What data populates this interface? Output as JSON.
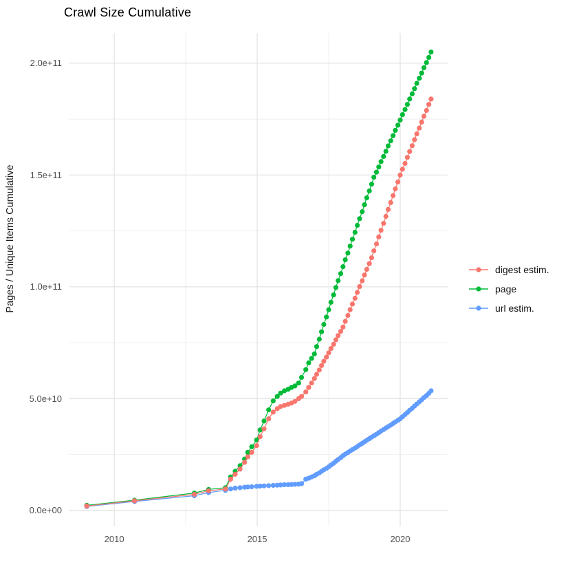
{
  "chart_data": {
    "type": "line",
    "marker": "point",
    "title": "Crawl Size Cumulative",
    "xlabel": "",
    "ylabel": "Pages / Unique Items Cumulative",
    "grid": true,
    "background": "#ffffff",
    "gridline_major_color": "#e4e4e4",
    "gridline_minor_color": "#ededed",
    "axis_text_color": "#4d4d4d",
    "x_range": [
      2008.41,
      2021.66
    ],
    "y_unit": "1e9",
    "y_range_e9": [
      -7.1,
      213.5
    ],
    "x_ticks": [
      {
        "value": 2010,
        "label": "2010"
      },
      {
        "value": 2015,
        "label": "2015"
      },
      {
        "value": 2020,
        "label": "2020"
      }
    ],
    "x_minor_ticks": [
      2012.5,
      2017.5
    ],
    "y_ticks": [
      {
        "value_e9": 0,
        "label": "0.0e+00"
      },
      {
        "value_e9": 50,
        "label": "5.0e+10"
      },
      {
        "value_e9": 100,
        "label": "1.0e+11"
      },
      {
        "value_e9": 150,
        "label": "1.5e+11"
      },
      {
        "value_e9": 200,
        "label": "2.0e+11"
      }
    ],
    "y_minor_ticks_e9": [
      25,
      75,
      125,
      175
    ],
    "legend": {
      "position": "right",
      "entries": [
        {
          "label": "digest estim.",
          "color": "#F8766D"
        },
        {
          "label": "page",
          "color": "#00BA38"
        },
        {
          "label": "url estim.",
          "color": "#619CFF"
        }
      ]
    },
    "series": [
      {
        "name": "url estim.",
        "color": "#619CFF",
        "points_year_value_e9": [
          [
            2009.04,
            1.8
          ],
          [
            2010.71,
            4.0
          ],
          [
            2012.8,
            6.6
          ],
          [
            2013.3,
            8.0
          ],
          [
            2013.89,
            9.0
          ],
          [
            2014.07,
            9.6
          ],
          [
            2014.23,
            10.0
          ],
          [
            2014.4,
            10.2
          ],
          [
            2014.56,
            10.4
          ],
          [
            2014.67,
            10.5
          ],
          [
            2014.81,
            10.6
          ],
          [
            2014.98,
            10.8
          ],
          [
            2015.1,
            10.9
          ],
          [
            2015.24,
            11.0
          ],
          [
            2015.4,
            11.1
          ],
          [
            2015.56,
            11.2
          ],
          [
            2015.7,
            11.3
          ],
          [
            2015.82,
            11.4
          ],
          [
            2015.95,
            11.5
          ],
          [
            2016.08,
            11.5
          ],
          [
            2016.2,
            11.6
          ],
          [
            2016.32,
            11.7
          ],
          [
            2016.45,
            11.8
          ],
          [
            2016.55,
            12.0
          ],
          [
            2016.7,
            14.0
          ],
          [
            2016.8,
            14.4
          ],
          [
            2016.9,
            15.0
          ],
          [
            2017.0,
            15.5
          ],
          [
            2017.08,
            16.2
          ],
          [
            2017.17,
            16.8
          ],
          [
            2017.25,
            17.5
          ],
          [
            2017.33,
            18.2
          ],
          [
            2017.42,
            18.8
          ],
          [
            2017.5,
            19.5
          ],
          [
            2017.58,
            20.3
          ],
          [
            2017.67,
            21.1
          ],
          [
            2017.75,
            22.0
          ],
          [
            2017.83,
            22.8
          ],
          [
            2017.92,
            23.6
          ],
          [
            2018.0,
            24.5
          ],
          [
            2018.08,
            25.2
          ],
          [
            2018.17,
            25.9
          ],
          [
            2018.25,
            26.6
          ],
          [
            2018.33,
            27.2
          ],
          [
            2018.42,
            27.9
          ],
          [
            2018.5,
            28.6
          ],
          [
            2018.58,
            29.3
          ],
          [
            2018.67,
            30.0
          ],
          [
            2018.75,
            30.7
          ],
          [
            2018.83,
            31.4
          ],
          [
            2018.92,
            32.1
          ],
          [
            2019.0,
            32.8
          ],
          [
            2019.08,
            33.4
          ],
          [
            2019.17,
            34.1
          ],
          [
            2019.25,
            34.8
          ],
          [
            2019.33,
            35.5
          ],
          [
            2019.42,
            36.2
          ],
          [
            2019.5,
            36.9
          ],
          [
            2019.58,
            37.5
          ],
          [
            2019.67,
            38.2
          ],
          [
            2019.75,
            38.9
          ],
          [
            2019.83,
            39.6
          ],
          [
            2019.92,
            40.3
          ],
          [
            2020.0,
            41.0
          ],
          [
            2020.08,
            41.9
          ],
          [
            2020.17,
            42.9
          ],
          [
            2020.25,
            43.8
          ],
          [
            2020.33,
            44.8
          ],
          [
            2020.42,
            45.7
          ],
          [
            2020.5,
            46.7
          ],
          [
            2020.58,
            47.6
          ],
          [
            2020.67,
            48.6
          ],
          [
            2020.75,
            49.5
          ],
          [
            2020.83,
            50.5
          ],
          [
            2020.92,
            51.4
          ],
          [
            2021.0,
            52.4
          ],
          [
            2021.08,
            53.5
          ]
        ]
      },
      {
        "name": "page",
        "color": "#00BA38",
        "points_year_value_e9": [
          [
            2009.04,
            2.3
          ],
          [
            2010.71,
            4.6
          ],
          [
            2012.8,
            7.8
          ],
          [
            2013.3,
            9.4
          ],
          [
            2013.89,
            10.2
          ],
          [
            2014.07,
            15.0
          ],
          [
            2014.23,
            17.5
          ],
          [
            2014.4,
            20.0
          ],
          [
            2014.56,
            23.0
          ],
          [
            2014.67,
            26.0
          ],
          [
            2014.81,
            28.5
          ],
          [
            2014.98,
            31.5
          ],
          [
            2015.1,
            36.0
          ],
          [
            2015.24,
            40.0
          ],
          [
            2015.4,
            45.0
          ],
          [
            2015.56,
            49.0
          ],
          [
            2015.7,
            51.0
          ],
          [
            2015.82,
            52.5
          ],
          [
            2015.95,
            53.5
          ],
          [
            2016.08,
            54.2
          ],
          [
            2016.2,
            55.0
          ],
          [
            2016.32,
            55.7
          ],
          [
            2016.45,
            57.0
          ],
          [
            2016.55,
            59.5
          ],
          [
            2016.7,
            63.0
          ],
          [
            2016.8,
            66.0
          ],
          [
            2016.9,
            68.0
          ],
          [
            2017.0,
            70.0
          ],
          [
            2017.08,
            73.3
          ],
          [
            2017.17,
            76.6
          ],
          [
            2017.25,
            79.9
          ],
          [
            2017.33,
            83.2
          ],
          [
            2017.42,
            86.5
          ],
          [
            2017.5,
            89.8
          ],
          [
            2017.58,
            93.1
          ],
          [
            2017.67,
            96.4
          ],
          [
            2017.75,
            99.7
          ],
          [
            2017.83,
            102.8
          ],
          [
            2017.92,
            105.9
          ],
          [
            2018.0,
            109.0
          ],
          [
            2018.08,
            112.1
          ],
          [
            2018.17,
            115.1
          ],
          [
            2018.25,
            118.2
          ],
          [
            2018.33,
            121.3
          ],
          [
            2018.42,
            124.4
          ],
          [
            2018.5,
            127.5
          ],
          [
            2018.58,
            130.5
          ],
          [
            2018.67,
            133.6
          ],
          [
            2018.75,
            136.7
          ],
          [
            2018.83,
            139.8
          ],
          [
            2018.92,
            142.9
          ],
          [
            2019.0,
            145.9
          ],
          [
            2019.08,
            149.0
          ],
          [
            2019.17,
            151.3
          ],
          [
            2019.25,
            153.6
          ],
          [
            2019.33,
            156.0
          ],
          [
            2019.42,
            158.3
          ],
          [
            2019.5,
            160.6
          ],
          [
            2019.58,
            163.0
          ],
          [
            2019.67,
            165.3
          ],
          [
            2019.75,
            167.6
          ],
          [
            2019.83,
            170.0
          ],
          [
            2019.92,
            172.3
          ],
          [
            2020.0,
            174.6
          ],
          [
            2020.08,
            177.0
          ],
          [
            2020.17,
            179.3
          ],
          [
            2020.25,
            181.6
          ],
          [
            2020.33,
            184.0
          ],
          [
            2020.42,
            186.3
          ],
          [
            2020.5,
            188.6
          ],
          [
            2020.58,
            191.0
          ],
          [
            2020.67,
            193.3
          ],
          [
            2020.75,
            195.6
          ],
          [
            2020.83,
            198.0
          ],
          [
            2020.92,
            200.3
          ],
          [
            2021.0,
            202.6
          ],
          [
            2021.08,
            205.0
          ]
        ]
      },
      {
        "name": "digest estim.",
        "color": "#F8766D",
        "points_year_value_e9": [
          [
            2009.04,
            2.0
          ],
          [
            2010.71,
            4.3
          ],
          [
            2012.8,
            7.2
          ],
          [
            2013.3,
            8.8
          ],
          [
            2013.89,
            9.6
          ],
          [
            2014.07,
            14.0
          ],
          [
            2014.23,
            16.2
          ],
          [
            2014.4,
            18.5
          ],
          [
            2014.56,
            21.5
          ],
          [
            2014.67,
            24.0
          ],
          [
            2014.81,
            26.0
          ],
          [
            2014.98,
            29.0
          ],
          [
            2015.1,
            33.0
          ],
          [
            2015.24,
            36.5
          ],
          [
            2015.4,
            41.0
          ],
          [
            2015.56,
            44.0
          ],
          [
            2015.7,
            45.5
          ],
          [
            2015.82,
            46.5
          ],
          [
            2015.95,
            47.0
          ],
          [
            2016.08,
            47.5
          ],
          [
            2016.2,
            48.0
          ],
          [
            2016.32,
            48.8
          ],
          [
            2016.45,
            50.0
          ],
          [
            2016.55,
            51.0
          ],
          [
            2016.7,
            53.0
          ],
          [
            2016.8,
            55.0
          ],
          [
            2016.9,
            57.0
          ],
          [
            2017.0,
            59.0
          ],
          [
            2017.08,
            60.9
          ],
          [
            2017.17,
            62.8
          ],
          [
            2017.25,
            64.8
          ],
          [
            2017.33,
            66.7
          ],
          [
            2017.42,
            68.6
          ],
          [
            2017.5,
            70.5
          ],
          [
            2017.58,
            72.4
          ],
          [
            2017.67,
            74.3
          ],
          [
            2017.75,
            76.3
          ],
          [
            2017.83,
            78.2
          ],
          [
            2017.92,
            80.1
          ],
          [
            2018.0,
            82.0
          ],
          [
            2018.08,
            84.6
          ],
          [
            2018.17,
            87.2
          ],
          [
            2018.25,
            89.8
          ],
          [
            2018.33,
            92.3
          ],
          [
            2018.42,
            94.9
          ],
          [
            2018.5,
            97.5
          ],
          [
            2018.58,
            100.1
          ],
          [
            2018.67,
            102.7
          ],
          [
            2018.75,
            105.3
          ],
          [
            2018.83,
            107.8
          ],
          [
            2018.92,
            110.4
          ],
          [
            2019.0,
            113.0
          ],
          [
            2019.08,
            116.1
          ],
          [
            2019.17,
            119.2
          ],
          [
            2019.25,
            122.3
          ],
          [
            2019.33,
            125.3
          ],
          [
            2019.42,
            128.4
          ],
          [
            2019.5,
            131.5
          ],
          [
            2019.58,
            134.6
          ],
          [
            2019.67,
            137.7
          ],
          [
            2019.75,
            140.8
          ],
          [
            2019.83,
            143.8
          ],
          [
            2019.92,
            146.9
          ],
          [
            2020.0,
            150.0
          ],
          [
            2020.08,
            152.6
          ],
          [
            2020.17,
            155.2
          ],
          [
            2020.25,
            157.9
          ],
          [
            2020.33,
            160.5
          ],
          [
            2020.42,
            163.1
          ],
          [
            2020.5,
            165.8
          ],
          [
            2020.58,
            168.4
          ],
          [
            2020.67,
            171.0
          ],
          [
            2020.75,
            173.7
          ],
          [
            2020.83,
            176.3
          ],
          [
            2020.92,
            178.9
          ],
          [
            2021.0,
            181.6
          ],
          [
            2021.08,
            184.0
          ]
        ]
      }
    ]
  }
}
